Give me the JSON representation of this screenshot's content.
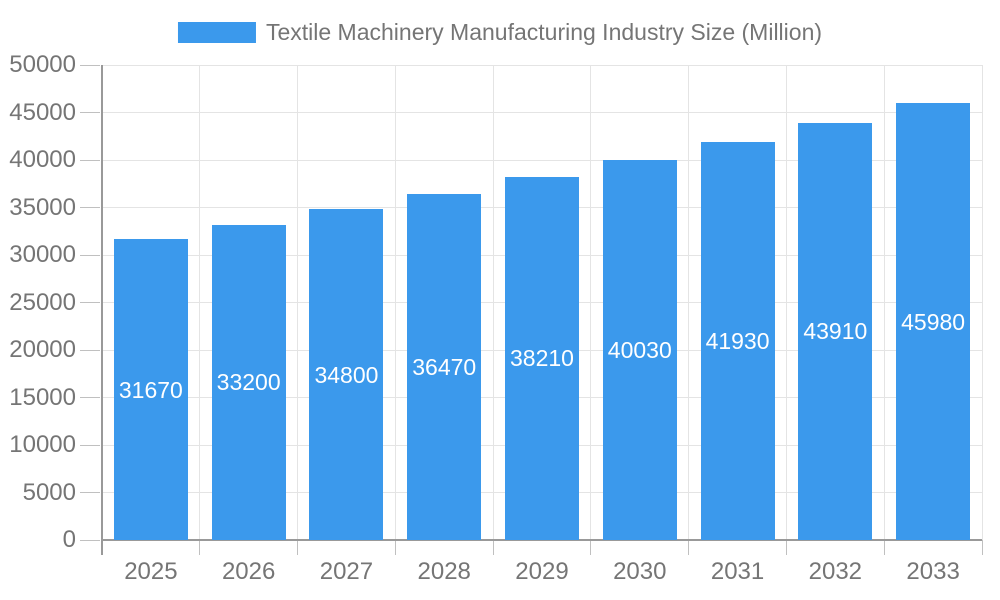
{
  "chart_data": {
    "type": "bar",
    "title": "Textile Machinery Manufacturing Industry Size (Million)",
    "legend_entries": [
      "Textile Machinery Manufacturing Industry Size (Million)"
    ],
    "legend_position": "top-center",
    "categories": [
      "2025",
      "2026",
      "2027",
      "2028",
      "2029",
      "2030",
      "2031",
      "2032",
      "2033"
    ],
    "values": [
      31670,
      33200,
      34800,
      36470,
      38210,
      40030,
      41930,
      43910,
      45980
    ],
    "value_labels": [
      "31670",
      "33200",
      "34800",
      "36470",
      "38210",
      "40030",
      "41930",
      "43910",
      "45980"
    ],
    "xlabel": "",
    "ylabel": "",
    "ylim": [
      0,
      50000
    ],
    "yticks": [
      0,
      5000,
      10000,
      15000,
      20000,
      25000,
      30000,
      35000,
      40000,
      45000,
      50000
    ],
    "grid": true,
    "colors": {
      "bar": "#3B99EC",
      "bar_value_text": "#ffffff",
      "axis_text": "#757575",
      "legend_text": "#757575",
      "gridline": "#e4e4e4",
      "axis_line": "#999999",
      "tick": "#c0c0c0",
      "background": "#ffffff"
    }
  }
}
